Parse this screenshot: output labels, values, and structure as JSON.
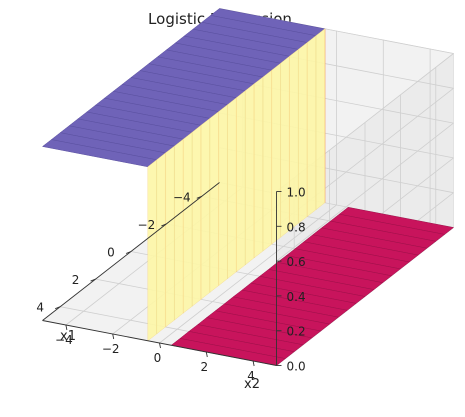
{
  "chart_data": {
    "type": "surface3d",
    "title": "Logistic Regression",
    "xlabel": "x1",
    "ylabel": "x2",
    "zlabel": "",
    "x_ticks": [
      "−4",
      "−2",
      "0",
      "2",
      "4"
    ],
    "y_ticks": [
      "−4",
      "−2",
      "0",
      "2",
      "4"
    ],
    "z_ticks": [
      "0.0",
      "0.2",
      "0.4",
      "0.6",
      "0.8",
      "1.0"
    ],
    "x_range": [
      -5,
      5
    ],
    "y_range": [
      -5,
      5
    ],
    "zlim": [
      0,
      1
    ],
    "grid": true,
    "colormap": "Spectral",
    "colors": {
      "high": "#6f63b8",
      "low": "#c8145c",
      "mid": "#fdf6a6"
    },
    "surface": {
      "description": "sigmoid of linear model in x2",
      "value_for_x2_below_0": 1.0,
      "value_for_x2_above_0": 0.0,
      "transition_x2": 0
    }
  }
}
